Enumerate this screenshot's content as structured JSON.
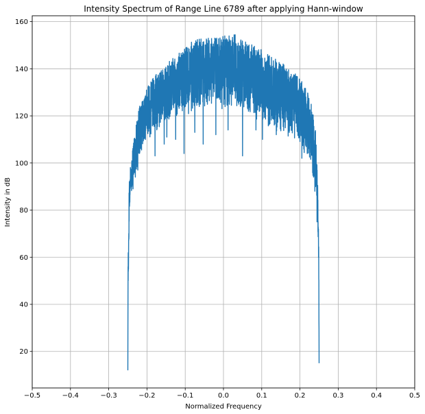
{
  "chart_data": {
    "type": "line",
    "title": "Intensity Spectrum of Range Line 6789 after applying Hann-window",
    "xlabel": "Normalized Frequency",
    "ylabel": "Intensity in dB",
    "xlim": [
      -0.5,
      0.5
    ],
    "ylim": [
      4.5,
      162.5
    ],
    "xticks": [
      -0.5,
      -0.4,
      -0.3,
      -0.2,
      -0.1,
      0.0,
      0.1,
      0.2,
      0.3,
      0.4,
      0.5
    ],
    "xtick_labels": [
      "−0.5",
      "−0.4",
      "−0.3",
      "−0.2",
      "−0.1",
      "0.0",
      "0.1",
      "0.2",
      "0.3",
      "0.4",
      "0.5"
    ],
    "yticks": [
      20,
      40,
      60,
      80,
      100,
      120,
      140,
      160
    ],
    "ytick_labels": [
      "20",
      "40",
      "60",
      "80",
      "100",
      "120",
      "140",
      "160"
    ],
    "grid": true,
    "line_color": "#1f77b4",
    "series": [
      {
        "name": "",
        "envelope": {
          "x": [
            -0.25,
            -0.249,
            -0.246,
            -0.24,
            -0.23,
            -0.22,
            -0.2,
            -0.18,
            -0.15,
            -0.12,
            -0.1,
            -0.08,
            -0.05,
            -0.02,
            0.0,
            0.02,
            0.03,
            0.05,
            0.08,
            0.1,
            0.12,
            0.15,
            0.18,
            0.2,
            0.22,
            0.23,
            0.24,
            0.245,
            0.247,
            0.249,
            0.25
          ],
          "upper": [
            58,
            70,
            95,
            102,
            116,
            124,
            132,
            137,
            142,
            146,
            149,
            152,
            153,
            153,
            154,
            154,
            155,
            152,
            150,
            148,
            146,
            143,
            139,
            136,
            130,
            125,
            116,
            100,
            86,
            70,
            37
          ],
          "lower": [
            12,
            46,
            80,
            88,
            95,
            100,
            108,
            112,
            116,
            119,
            120,
            121,
            122,
            122,
            122,
            122,
            122,
            121,
            119,
            117,
            114,
            112,
            110,
            106,
            102,
            95,
            90,
            78,
            65,
            52,
            15
          ]
        },
        "dips": [
          {
            "x": -0.2445,
            "y": 87
          },
          {
            "x": -0.2365,
            "y": 89
          },
          {
            "x": -0.2305,
            "y": 94
          },
          {
            "x": -0.224,
            "y": 97
          },
          {
            "x": -0.179,
            "y": 103
          },
          {
            "x": -0.155,
            "y": 108
          },
          {
            "x": -0.148,
            "y": 111
          },
          {
            "x": -0.125,
            "y": 110
          },
          {
            "x": -0.103,
            "y": 104
          },
          {
            "x": -0.075,
            "y": 113
          },
          {
            "x": -0.053,
            "y": 108
          },
          {
            "x": -0.02,
            "y": 112
          },
          {
            "x": 0.012,
            "y": 114
          },
          {
            "x": 0.05,
            "y": 103
          },
          {
            "x": 0.085,
            "y": 114
          },
          {
            "x": 0.102,
            "y": 110
          },
          {
            "x": 0.138,
            "y": 112
          },
          {
            "x": 0.172,
            "y": 113
          },
          {
            "x": 0.205,
            "y": 102
          },
          {
            "x": 0.219,
            "y": 104
          },
          {
            "x": 0.239,
            "y": 88
          },
          {
            "x": 0.2445,
            "y": 75
          }
        ]
      }
    ]
  }
}
